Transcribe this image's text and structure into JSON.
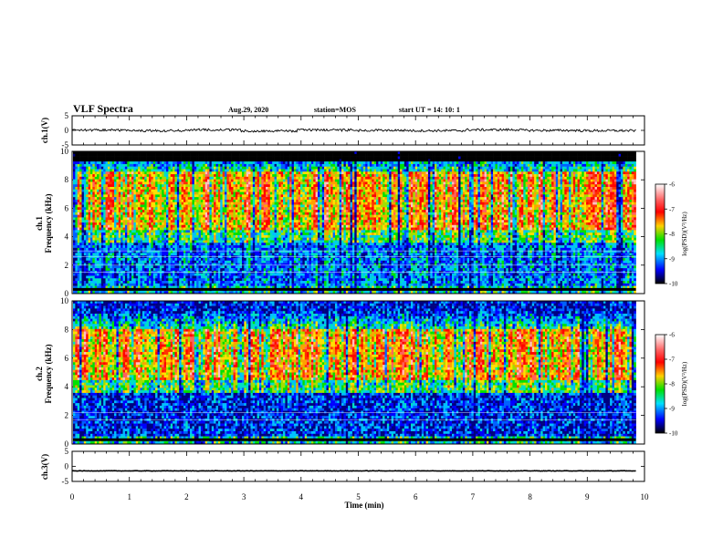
{
  "header": {
    "title": "VLF Spectra",
    "date": "Aug.29, 2020",
    "station": "station=MOS",
    "start": "start UT = 14: 10: 1"
  },
  "colorbar": {
    "label": "log(PSD)(V²/Hz)",
    "ticks": [
      "-6",
      "-7",
      "-8",
      "-9",
      "-10"
    ],
    "colors": [
      "#ffffff",
      "#ff0000",
      "#ffd000",
      "#00e000",
      "#00e0ff",
      "#0000ff",
      "#000000"
    ]
  },
  "chart_data": [
    {
      "type": "line",
      "panel": "ch.1 waveform",
      "ylabel": "ch.1(V)",
      "ylim": [
        -5,
        5
      ],
      "y_ticks": [
        "5",
        "0",
        "-5"
      ],
      "x_range_min": [
        0,
        9.85
      ],
      "series": [
        {
          "values_V_approx": [
            0.1,
            -0.1,
            0.2,
            -0.2,
            0.1,
            0.0,
            -0.1,
            0.2,
            0.0,
            -0.1
          ]
        }
      ]
    },
    {
      "type": "heatmap",
      "panel": "ch.1 spectrogram",
      "ylabel": "ch.1 Frequency (kHz)",
      "ylim": [
        0,
        10
      ],
      "y_ticks": [
        "0",
        "2",
        "4",
        "6",
        "8",
        "10"
      ],
      "color_range": [
        -10,
        -6
      ],
      "dominant_band_kHz": [
        4.5,
        8.5
      ]
    },
    {
      "type": "heatmap",
      "panel": "ch.2 spectrogram",
      "ylabel": "ch.2 Frequency (kHz)",
      "ylim": [
        0,
        10
      ],
      "y_ticks": [
        "0",
        "2",
        "4",
        "6",
        "8",
        "10"
      ],
      "color_range": [
        -10,
        -6
      ],
      "dominant_band_kHz": [
        4.5,
        8.0
      ]
    },
    {
      "type": "line",
      "panel": "ch.3 waveform",
      "ylabel": "ch.3(V)",
      "ylim": [
        -5,
        5
      ],
      "y_ticks": [
        "5",
        "0",
        "-5"
      ],
      "x_range_min": [
        0,
        9.85
      ],
      "series": [
        {
          "values_V_approx": [
            -1.5,
            -1.5,
            -1.5,
            -1.5,
            -1.5,
            -1.5,
            -1.5,
            -1.5,
            -1.5,
            -1.5
          ]
        }
      ]
    }
  ],
  "xaxis": {
    "label": "Time (min)",
    "xlim": [
      0,
      10
    ],
    "ticks": [
      "0",
      "1",
      "2",
      "3",
      "4",
      "5",
      "6",
      "7",
      "8",
      "9",
      "10"
    ]
  }
}
